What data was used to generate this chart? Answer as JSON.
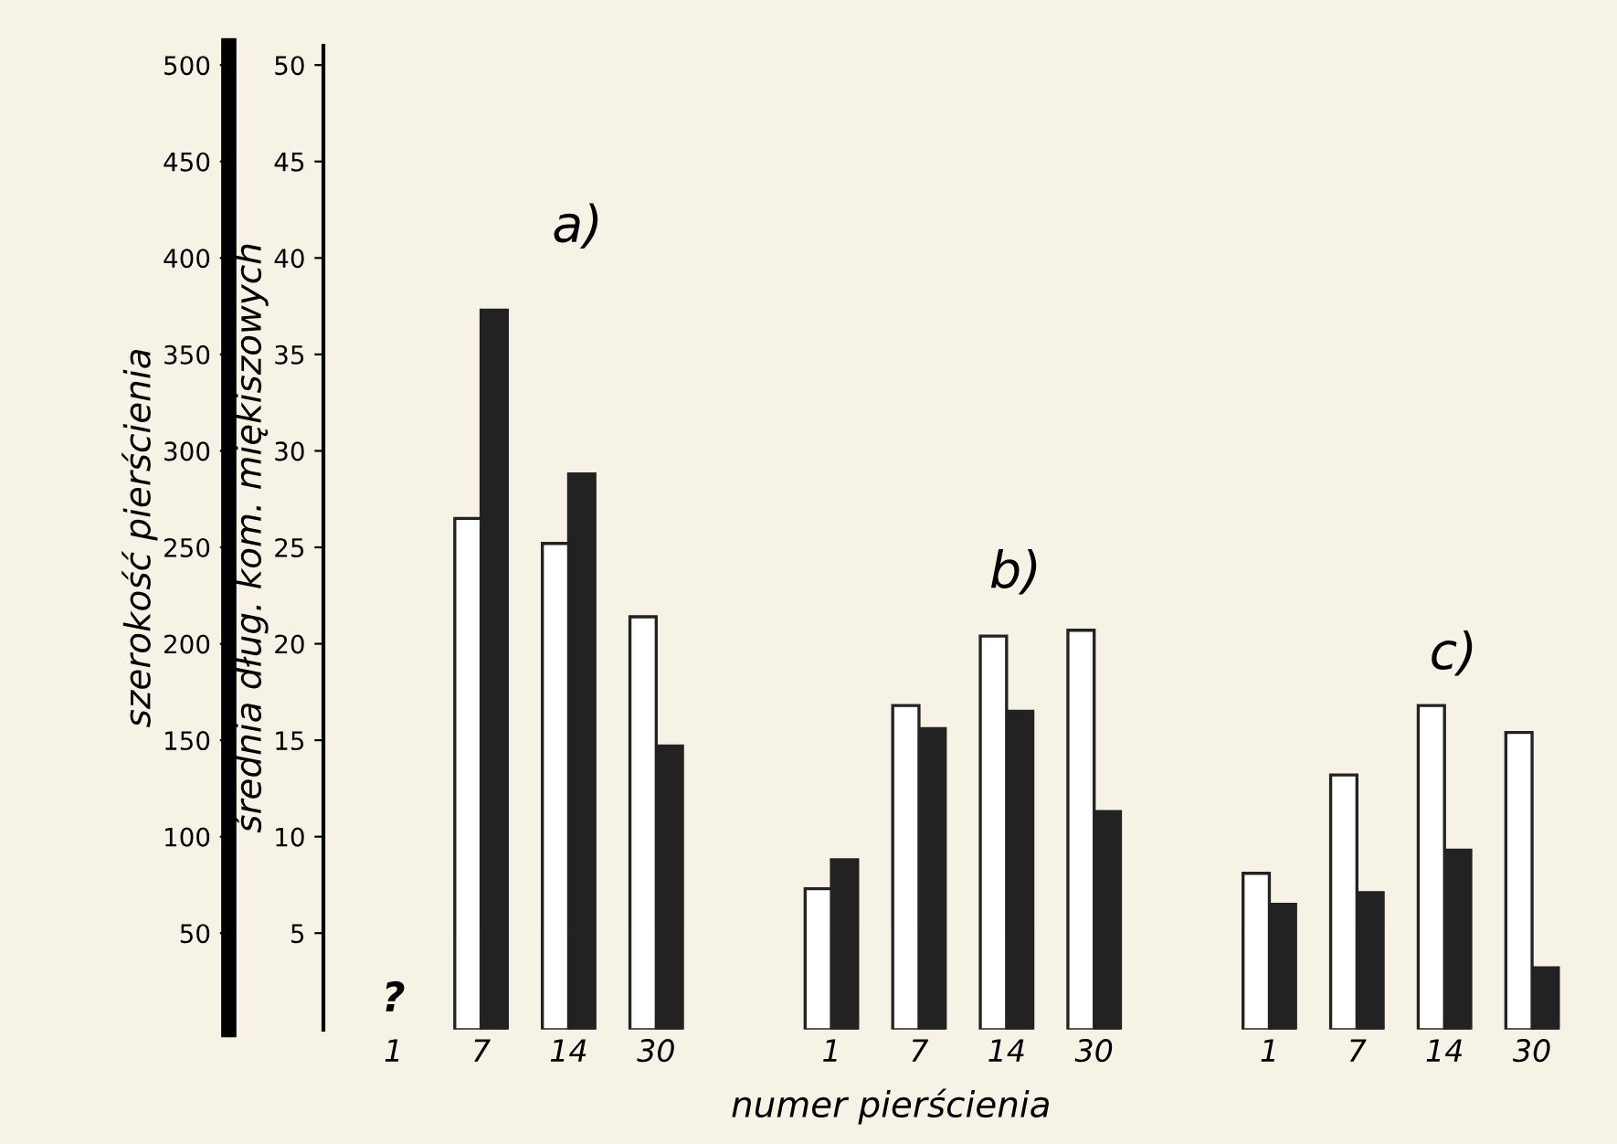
{
  "chart_data": {
    "type": "bar",
    "categories": [
      "1",
      "7",
      "14",
      "30",
      null,
      "1",
      "7",
      "14",
      "30",
      null,
      "1",
      "7",
      "14",
      "30"
    ],
    "series": [
      {
        "color": "#ffffff",
        "axis": "y2",
        "values": [
          null,
          26.5,
          25.2,
          21.4,
          null,
          7.3,
          16.8,
          20.4,
          20.7,
          null,
          8.1,
          13.2,
          16.8,
          15.4
        ]
      },
      {
        "color": "#222222",
        "axis": "y",
        "values": [
          null,
          373,
          288,
          147,
          null,
          88,
          156,
          165,
          113,
          null,
          65,
          71,
          93,
          32
        ]
      }
    ],
    "ylabel": "szerokość pierścienia",
    "y2label": "średnia dług. kom. miękiszowych",
    "xlabel": "numer pierścienia",
    "ylim": [
      0,
      510
    ],
    "yticks": [
      50,
      100,
      150,
      200,
      250,
      300,
      350,
      400,
      450,
      500
    ],
    "y2lim": [
      0,
      51
    ],
    "y2ticks": [
      5,
      10,
      15,
      20,
      25,
      30,
      35,
      40,
      45,
      50
    ],
    "annotations": [
      "?",
      "a)",
      "b)",
      "c)"
    ],
    "grid": false,
    "legend": false
  }
}
